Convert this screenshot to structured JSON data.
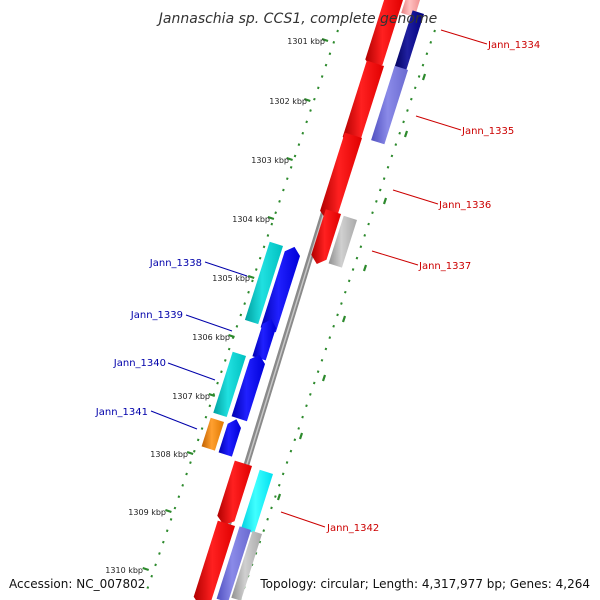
{
  "title": "Jannaschia sp. CCS1, complete genome",
  "accession": "Accession: NC_007802",
  "summary": "Topology: circular; Length: 4,317,977 bp; Genes: 4,264",
  "colors": {
    "backbone": "#8a8a8a",
    "tick": "#2d8a2d",
    "forward_label": "#cc0000",
    "reverse_label": "#0000aa"
  },
  "ticks": [
    "1301 kbp",
    "1302 kbp",
    "1303 kbp",
    "1304 kbp",
    "1305 kbp",
    "1306 kbp",
    "1307 kbp",
    "1308 kbp",
    "1309 kbp",
    "1310 kbp"
  ],
  "gene_labels": [
    "Jann_1334",
    "Jann_1335",
    "Jann_1336",
    "Jann_1337",
    "Jann_1338",
    "Jann_1339",
    "Jann_1340",
    "Jann_1341",
    "Jann_1342"
  ]
}
